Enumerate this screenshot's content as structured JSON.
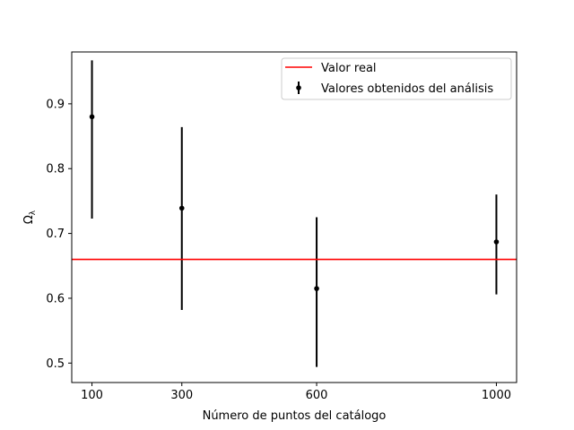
{
  "chart_data": {
    "type": "scatter",
    "xlabel": "Número de puntos del catálogo",
    "ylabel": "Ω",
    "ylabel_subscript": "λ",
    "xlim": [
      55,
      1045
    ],
    "ylim": [
      0.47,
      0.98
    ],
    "x_ticks": [
      100,
      300,
      600,
      1000
    ],
    "y_ticks": [
      0.5,
      0.6,
      0.7,
      0.8,
      0.9
    ],
    "y_tick_labels": [
      "0.5",
      "0.6",
      "0.7",
      "0.8",
      "0.9"
    ],
    "grid": false,
    "legend_position": "top-right",
    "series": [
      {
        "name": "Valores obtenidos del análisis",
        "kind": "errorbar",
        "color": "#000000",
        "points": [
          {
            "x": 100,
            "y": 0.88,
            "ylow": 0.723,
            "yhigh": 0.967
          },
          {
            "x": 300,
            "y": 0.739,
            "ylow": 0.582,
            "yhigh": 0.864
          },
          {
            "x": 600,
            "y": 0.615,
            "ylow": 0.494,
            "yhigh": 0.725
          },
          {
            "x": 1000,
            "y": 0.687,
            "ylow": 0.606,
            "yhigh": 0.76
          }
        ]
      },
      {
        "name": "Valor real",
        "kind": "hline",
        "color": "#ff0000",
        "y": 0.66
      }
    ]
  }
}
